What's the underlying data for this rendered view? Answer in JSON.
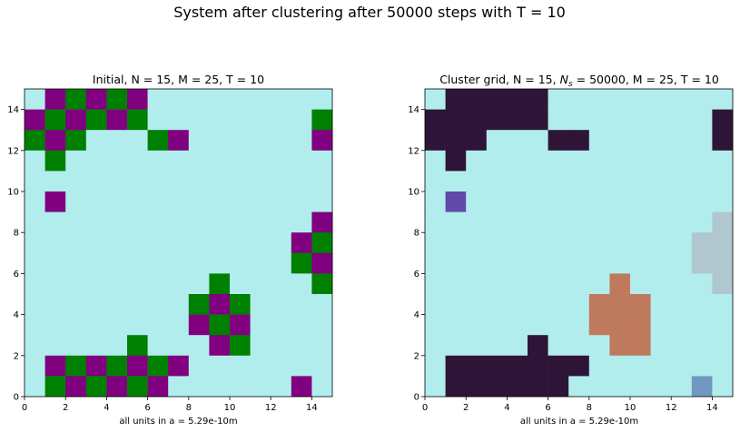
{
  "figure": {
    "suptitle": "System after clustering after 50000 steps with T = 10",
    "background": "#ffffff"
  },
  "chart_data": [
    {
      "type": "heatmap",
      "title": "Initial, N = 15, M = 25, T = 10",
      "xlabel": "all units in a = 5.29e-10m",
      "ylabel": "",
      "xlim": [
        0,
        15
      ],
      "ylim": [
        0,
        15
      ],
      "xticks": [
        0,
        2,
        4,
        6,
        8,
        10,
        12,
        14
      ],
      "yticks": [
        0,
        2,
        4,
        6,
        8,
        10,
        12,
        14
      ],
      "grid": false,
      "origin": "lower",
      "colors": {
        "E": "#b2eded",
        "P": "#800080",
        "G": "#008000"
      },
      "rows_top_to_bottom": [
        "EPGPGPEEEEEEEEE",
        "PGPGPGEEEEEEEEG",
        "GPGEEEGPEEEEEEP",
        "EGEEEEEEEEEEEEE",
        "EEEEEEEEEEEEEEE",
        "EPEEEEEEEEEEEEE",
        "EEEEEEEEEEEEEEP",
        "EEEEEEEEEEEEEPG",
        "EEEEEEEEEEEEEGP",
        "EEEEEEEEEGEEEEG",
        "EEEEEEEEGPGEEEE",
        "EEEEEEEEPGPEEEE",
        "EEEEEGEEEPGEEEE",
        "EPGPGPGPEEEEEEE",
        "EGPGPGPEEEEEEPE"
      ]
    },
    {
      "type": "heatmap",
      "title": "Cluster grid, N = 15, N_s = 50000, M = 25, T = 10",
      "title_parts": {
        "pre": "Cluster grid, N = 15, ",
        "sym": "N",
        "sub": "s",
        "post": " = 50000, M = 25, T = 10"
      },
      "xlabel": "all units in a = 5.29e-10m",
      "ylabel": "",
      "xlim": [
        0,
        15
      ],
      "ylim": [
        0,
        15
      ],
      "xticks": [
        0,
        2,
        4,
        6,
        8,
        10,
        12,
        14
      ],
      "yticks": [
        0,
        2,
        4,
        6,
        8,
        10,
        12,
        14
      ],
      "grid": false,
      "origin": "lower",
      "colors": {
        "E": "#b2eded",
        "D": "#2e1538",
        "V": "#604aa8",
        "S": "#b1c7cf",
        "C": "#bf7a5e",
        "B": "#7098c3"
      },
      "rows_top_to_bottom": [
        "EDDDDDEEEEEEEEE",
        "DDDDDDEEEEEEEED",
        "DDDEEEDDEEEEEED",
        "EDEEEEEEEEEEEEE",
        "EEEEEEEEEEEEEEE",
        "EVEEEEEEEEEEEEE",
        "EEEEEEEEEEEEEES",
        "EEEEEEEEEEEEESS",
        "EEEEEEEEEEEEESS",
        "EEEEEEEEECEEEES",
        "EEEEEEEECCCEEEE",
        "EEEEEEEECCCEEEE",
        "EEEEEDEEECCEEEE",
        "EDDDDDDDEEEEEEE",
        "EDDDDDDEEEEEEBE"
      ]
    }
  ]
}
